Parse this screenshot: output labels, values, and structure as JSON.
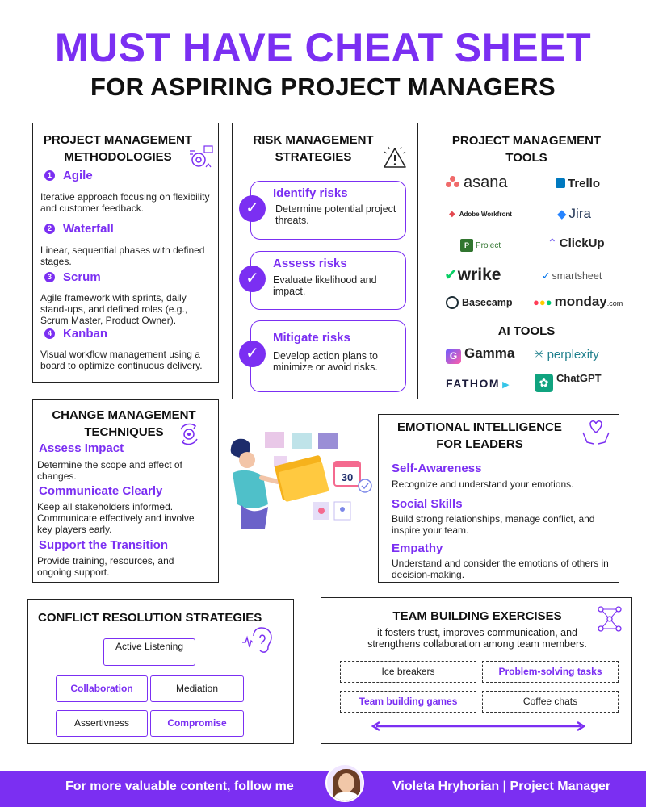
{
  "header": {
    "title": "MUST HAVE CHEAT SHEET",
    "subtitle": "FOR ASPIRING PROJECT MANAGERS"
  },
  "methodologies": {
    "title_line1": "PROJECT MANAGEMENT",
    "title_line2": "METHODOLOGIES",
    "items": [
      {
        "num": "1",
        "name": "Agile",
        "text": "Iterative approach focusing on flexibility and customer feedback."
      },
      {
        "num": "2",
        "name": "Waterfall",
        "text": "Linear, sequential phases with defined stages."
      },
      {
        "num": "3",
        "name": "Scrum",
        "text": "Agile framework with sprints, daily stand-ups, and defined roles (e.g., Scrum Master, Product Owner)."
      },
      {
        "num": "4",
        "name": "Kanban",
        "text": "Visual workflow management using a board to optimize continuous delivery."
      }
    ]
  },
  "risk": {
    "title_line1": "RISK MANAGEMENT",
    "title_line2": "STRATEGIES",
    "items": [
      {
        "name": "Identify risks",
        "text": "Determine potential project threats."
      },
      {
        "name": "Assess risks",
        "text": "Evaluate likelihood and impact."
      },
      {
        "name": "Mitigate risks",
        "text": "Develop action plans to minimize or avoid risks."
      }
    ]
  },
  "tools": {
    "title_line1": "PROJECT MANAGEMENT",
    "title_line2": "TOOLS",
    "items": [
      "asana",
      "Trello",
      "Adobe Workfront",
      "Jira",
      "Project",
      "ClickUp",
      "wrike",
      "smartsheet",
      "Basecamp",
      "monday",
      ".com"
    ],
    "ai_title": "AI TOOLS",
    "ai_items": [
      "Gamma",
      "perplexity",
      "FATHOM",
      "ChatGPT"
    ]
  },
  "change": {
    "title_line1": "CHANGE MANAGEMENT",
    "title_line2": "TECHNIQUES",
    "items": [
      {
        "name": "Assess Impact",
        "text": "Determine the scope and effect of changes."
      },
      {
        "name": "Communicate Clearly",
        "text": "Keep all stakeholders informed. Communicate effectively and involve key players early."
      },
      {
        "name": "Support the Transition",
        "text": "Provide training, resources, and ongoing support."
      }
    ]
  },
  "illustration": {
    "calendar_day": "30"
  },
  "emotional": {
    "title_line1": "EMOTIONAL INTELLIGENCE",
    "title_line2": "FOR LEADERS",
    "items": [
      {
        "name": "Self-Awareness",
        "text": "Recognize and understand your emotions."
      },
      {
        "name": "Social Skills",
        "text": "Build strong relationships, manage conflict, and inspire your team."
      },
      {
        "name": "Empathy",
        "text": "Understand and consider the emotions of others in decision-making."
      }
    ]
  },
  "conflict": {
    "title": "CONFLICT RESOLUTION STRATEGIES",
    "items": [
      "Active Listening",
      "Collaboration",
      "Mediation",
      "Assertivness",
      "Compromise"
    ]
  },
  "team": {
    "title": "TEAM BUILDING EXERCISES",
    "description": "it fosters trust, improves communication, and strengthens collaboration among team members.",
    "items": [
      "Ice breakers",
      "Problem-solving tasks",
      "Team building games",
      "Coffee chats"
    ]
  },
  "footer": {
    "left_text": "For more valuable content, follow me",
    "right_text": "Violeta Hryhorian | Project Manager"
  },
  "colors": {
    "accent": "#7b2ff2",
    "text": "#111111",
    "border": "#222222"
  }
}
